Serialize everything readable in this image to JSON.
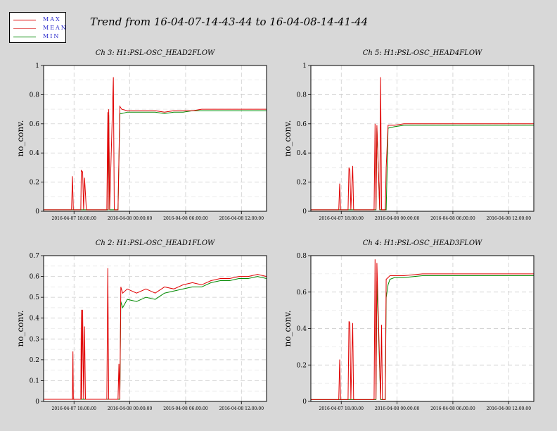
{
  "main_title": "Trend from 16-04-07-14-43-44 to 16-04-08-14-41-44",
  "legend": [
    {
      "label": "MAX",
      "color": "#e00000"
    },
    {
      "label": "MEAN",
      "color": "#e87070"
    },
    {
      "label": "MIN",
      "color": "#008800"
    }
  ],
  "chart_data": [
    {
      "type": "line",
      "title": "Ch 3: H1:PSL-OSC_HEAD2FLOW",
      "ylabel": "no_conv.",
      "ylim": [
        0,
        1
      ],
      "yticks": [
        "0",
        "0.2",
        "0.4",
        "0.6",
        "0.8",
        "1"
      ],
      "ytick_values": [
        0,
        0.2,
        0.4,
        0.6,
        0.8,
        1
      ],
      "xticks": [
        "2016-04-07 18:00:00",
        "2016-04-08 00:00:00",
        "2016-04-08 06:00:00",
        "2016-04-08 12:00:00"
      ],
      "xtick_hours": [
        3.27,
        9.27,
        15.27,
        21.27
      ],
      "xlim_hours": [
        0,
        23.97
      ],
      "grid": true,
      "x_hours": [
        0,
        3.0,
        3.1,
        3.2,
        3.3,
        4.0,
        4.05,
        4.2,
        4.3,
        4.4,
        4.6,
        4.7,
        6.8,
        6.9,
        6.95,
        7.0,
        7.1,
        7.5,
        7.6,
        8.0,
        8.2,
        8.4,
        9.0,
        10.0,
        12.0,
        13.0,
        14.0,
        15.0,
        16.0,
        17.0,
        18.0,
        20.0,
        22.0,
        23.97
      ],
      "series": [
        {
          "name": "MAX",
          "values": [
            0.01,
            0.01,
            0.24,
            0.01,
            0.01,
            0.01,
            0.28,
            0.27,
            0.01,
            0.23,
            0.01,
            0.01,
            0.01,
            0.68,
            0.01,
            0.7,
            0.01,
            0.92,
            0.01,
            0.01,
            0.72,
            0.7,
            0.69,
            0.69,
            0.69,
            0.68,
            0.69,
            0.69,
            0.69,
            0.7,
            0.7,
            0.7,
            0.7,
            0.7
          ]
        },
        {
          "name": "MIN",
          "values": [
            0.01,
            0.01,
            0.01,
            0.01,
            0.01,
            0.01,
            0.01,
            0.01,
            0.01,
            0.01,
            0.01,
            0.01,
            0.01,
            0.01,
            0.01,
            0.66,
            0.01,
            0.01,
            0.01,
            0.01,
            0.67,
            0.67,
            0.68,
            0.68,
            0.68,
            0.67,
            0.68,
            0.68,
            0.69,
            0.69,
            0.69,
            0.69,
            0.69,
            0.69
          ]
        }
      ]
    },
    {
      "type": "line",
      "title": "Ch 5: H1:PSL-OSC_HEAD4FLOW",
      "ylabel": "no_conv.",
      "ylim": [
        0,
        1
      ],
      "yticks": [
        "0",
        "0.2",
        "0.4",
        "0.6",
        "0.8",
        "1"
      ],
      "ytick_values": [
        0,
        0.2,
        0.4,
        0.6,
        0.8,
        1
      ],
      "xticks": [
        "2016-04-07 18:00:00",
        "2016-04-08 00:00:00",
        "2016-04-08 06:00:00",
        "2016-04-08 12:00:00"
      ],
      "xtick_hours": [
        3.27,
        9.27,
        15.27,
        21.27
      ],
      "xlim_hours": [
        0,
        23.97
      ],
      "grid": true,
      "x_hours": [
        0,
        3.0,
        3.1,
        3.2,
        3.3,
        4.0,
        4.1,
        4.2,
        4.3,
        4.5,
        4.6,
        6.8,
        6.9,
        7.0,
        7.1,
        7.4,
        7.5,
        7.6,
        8.0,
        8.1,
        8.3,
        9.0,
        10.0,
        12.0,
        14.0,
        16.0,
        18.0,
        20.0,
        22.0,
        23.97
      ],
      "series": [
        {
          "name": "MAX",
          "values": [
            0.01,
            0.01,
            0.19,
            0.01,
            0.01,
            0.01,
            0.3,
            0.28,
            0.01,
            0.31,
            0.01,
            0.01,
            0.6,
            0.01,
            0.59,
            0.01,
            0.92,
            0.01,
            0.01,
            0.3,
            0.59,
            0.59,
            0.6,
            0.6,
            0.6,
            0.6,
            0.6,
            0.6,
            0.6,
            0.6
          ]
        },
        {
          "name": "MIN",
          "values": [
            0.01,
            0.01,
            0.01,
            0.01,
            0.01,
            0.01,
            0.01,
            0.01,
            0.01,
            0.01,
            0.01,
            0.01,
            0.01,
            0.01,
            0.57,
            0.01,
            0.01,
            0.01,
            0.01,
            0.01,
            0.57,
            0.58,
            0.59,
            0.59,
            0.59,
            0.59,
            0.59,
            0.59,
            0.59,
            0.59
          ]
        }
      ]
    },
    {
      "type": "line",
      "title": "Ch 2: H1:PSL-OSC_HEAD1FLOW",
      "ylabel": "no_conv.",
      "ylim": [
        0,
        0.7
      ],
      "yticks": [
        "0",
        "0.1",
        "0.2",
        "0.3",
        "0.4",
        "0.5",
        "0.6",
        "0.7"
      ],
      "ytick_values": [
        0,
        0.1,
        0.2,
        0.3,
        0.4,
        0.5,
        0.6,
        0.7
      ],
      "xticks": [
        "2016-04-07 18:00:00",
        "2016-04-08 00:00:00",
        "2016-04-08 06:00:00",
        "2016-04-08 12:00:00"
      ],
      "xtick_hours": [
        3.27,
        9.27,
        15.27,
        21.27
      ],
      "xlim_hours": [
        0,
        23.97
      ],
      "grid": true,
      "x_hours": [
        0,
        3.1,
        3.15,
        3.2,
        3.3,
        4.0,
        4.05,
        4.1,
        4.2,
        4.3,
        4.4,
        4.5,
        6.8,
        6.9,
        7.0,
        7.1,
        8.0,
        8.1,
        8.2,
        8.3,
        8.5,
        9.0,
        10.0,
        11.0,
        12.0,
        13.0,
        14.0,
        15.0,
        16.0,
        17.0,
        18.0,
        19.0,
        20.0,
        21.0,
        22.0,
        23.0,
        23.97
      ],
      "series": [
        {
          "name": "MAX",
          "values": [
            0.01,
            0.01,
            0.24,
            0.01,
            0.01,
            0.01,
            0.44,
            0.01,
            0.44,
            0.01,
            0.36,
            0.01,
            0.01,
            0.64,
            0.01,
            0.01,
            0.01,
            0.18,
            0.01,
            0.55,
            0.52,
            0.54,
            0.52,
            0.54,
            0.52,
            0.55,
            0.54,
            0.56,
            0.57,
            0.56,
            0.58,
            0.59,
            0.59,
            0.6,
            0.6,
            0.61,
            0.6
          ]
        },
        {
          "name": "MIN",
          "values": [
            0.01,
            0.01,
            0.01,
            0.01,
            0.01,
            0.01,
            0.01,
            0.01,
            0.01,
            0.01,
            0.01,
            0.01,
            0.01,
            0.01,
            0.01,
            0.01,
            0.01,
            0.01,
            0.01,
            0.48,
            0.45,
            0.49,
            0.48,
            0.5,
            0.49,
            0.52,
            0.53,
            0.54,
            0.55,
            0.55,
            0.57,
            0.58,
            0.58,
            0.59,
            0.59,
            0.6,
            0.59
          ]
        }
      ]
    },
    {
      "type": "line",
      "title": "Ch 4: H1:PSL-OSC_HEAD3FLOW",
      "ylabel": "no_conv.",
      "ylim": [
        0,
        0.8
      ],
      "yticks": [
        "0",
        "0.2",
        "0.4",
        "0.6",
        "0.8"
      ],
      "ytick_values": [
        0,
        0.2,
        0.4,
        0.6,
        0.8
      ],
      "xticks": [
        "2016-04-07 18:00:00",
        "2016-04-08 00:00:00",
        "2016-04-08 06:00:00",
        "2016-04-08 12:00:00"
      ],
      "xtick_hours": [
        3.27,
        9.27,
        15.27,
        21.27
      ],
      "xlim_hours": [
        0,
        23.97
      ],
      "grid": true,
      "x_hours": [
        0,
        3.0,
        3.1,
        3.2,
        3.3,
        4.0,
        4.1,
        4.2,
        4.3,
        4.5,
        4.6,
        6.8,
        6.9,
        7.0,
        7.1,
        7.5,
        7.6,
        7.7,
        8.0,
        8.1,
        8.3,
        8.5,
        9.0,
        10.0,
        12.0,
        14.0,
        16.0,
        18.0,
        20.0,
        22.0,
        23.97
      ],
      "series": [
        {
          "name": "MAX",
          "values": [
            0.01,
            0.01,
            0.23,
            0.01,
            0.01,
            0.01,
            0.44,
            0.43,
            0.01,
            0.43,
            0.01,
            0.01,
            0.78,
            0.01,
            0.76,
            0.01,
            0.42,
            0.01,
            0.01,
            0.67,
            0.68,
            0.69,
            0.69,
            0.69,
            0.7,
            0.7,
            0.7,
            0.7,
            0.7,
            0.7,
            0.7
          ]
        },
        {
          "name": "MIN",
          "values": [
            0.01,
            0.01,
            0.01,
            0.01,
            0.01,
            0.01,
            0.01,
            0.01,
            0.01,
            0.01,
            0.01,
            0.01,
            0.01,
            0.01,
            0.66,
            0.01,
            0.01,
            0.01,
            0.01,
            0.57,
            0.64,
            0.67,
            0.68,
            0.68,
            0.69,
            0.69,
            0.69,
            0.69,
            0.69,
            0.69,
            0.69
          ]
        }
      ]
    }
  ]
}
